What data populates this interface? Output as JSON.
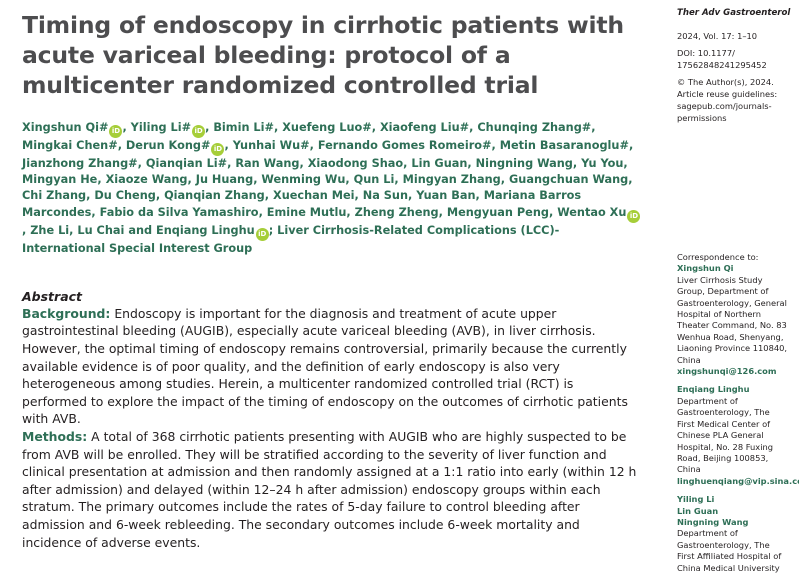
{
  "article": {
    "title": "Timing of endoscopy in cirrhotic patients with acute variceal bleeding: protocol of a multicenter randomized controlled trial",
    "authors": [
      {
        "name": "Xingshun Qi",
        "sup": "#",
        "orcid": true,
        "sep": ", "
      },
      {
        "name": "Yiling Li",
        "sup": "#",
        "orcid": true,
        "sep": ", "
      },
      {
        "name": "Bimin Li",
        "sup": "#",
        "orcid": false,
        "sep": ", "
      },
      {
        "name": "Xuefeng Luo",
        "sup": "#",
        "orcid": false,
        "sep": ", "
      },
      {
        "name": "Xiaofeng Liu",
        "sup": "#",
        "orcid": false,
        "sep": ", "
      },
      {
        "name": "Chunqing Zhang",
        "sup": "#",
        "orcid": false,
        "sep": ", "
      },
      {
        "name": "Mingkai Chen",
        "sup": "#",
        "orcid": false,
        "sep": ", "
      },
      {
        "name": "Derun Kong",
        "sup": "#",
        "orcid": true,
        "sep": ", "
      },
      {
        "name": "Yunhai Wu",
        "sup": "#",
        "orcid": false,
        "sep": ", "
      },
      {
        "name": "Fernando Gomes Romeiro",
        "sup": "#",
        "orcid": false,
        "sep": ", "
      },
      {
        "name": "Metin Basaranoglu",
        "sup": "#",
        "orcid": false,
        "sep": ", "
      },
      {
        "name": "Jianzhong Zhang",
        "sup": "#",
        "orcid": false,
        "sep": ", "
      },
      {
        "name": "Qianqian Li",
        "sup": "#",
        "orcid": false,
        "sep": ", "
      },
      {
        "name": "Ran Wang",
        "sup": "",
        "orcid": false,
        "sep": ", "
      },
      {
        "name": "Xiaodong Shao",
        "sup": "",
        "orcid": false,
        "sep": ", "
      },
      {
        "name": "Lin Guan",
        "sup": "",
        "orcid": false,
        "sep": ", "
      },
      {
        "name": "Ningning Wang",
        "sup": "",
        "orcid": false,
        "sep": ", "
      },
      {
        "name": "Yu You",
        "sup": "",
        "orcid": false,
        "sep": ", "
      },
      {
        "name": "Mingyan He",
        "sup": "",
        "orcid": false,
        "sep": ", "
      },
      {
        "name": "Xiaoze Wang",
        "sup": "",
        "orcid": false,
        "sep": ", "
      },
      {
        "name": "Ju Huang",
        "sup": "",
        "orcid": false,
        "sep": ", "
      },
      {
        "name": "Wenming Wu",
        "sup": "",
        "orcid": false,
        "sep": ", "
      },
      {
        "name": "Qun Li",
        "sup": "",
        "orcid": false,
        "sep": ", "
      },
      {
        "name": "Mingyan Zhang",
        "sup": "",
        "orcid": false,
        "sep": ", "
      },
      {
        "name": "Guangchuan Wang",
        "sup": "",
        "orcid": false,
        "sep": ", "
      },
      {
        "name": "Chi Zhang",
        "sup": "",
        "orcid": false,
        "sep": ", "
      },
      {
        "name": "Du Cheng",
        "sup": "",
        "orcid": false,
        "sep": ", "
      },
      {
        "name": "Qianqian Zhang",
        "sup": "",
        "orcid": false,
        "sep": ", "
      },
      {
        "name": "Xuechan Mei",
        "sup": "",
        "orcid": false,
        "sep": ", "
      },
      {
        "name": "Na Sun",
        "sup": "",
        "orcid": false,
        "sep": ", "
      },
      {
        "name": "Yuan Ban",
        "sup": "",
        "orcid": false,
        "sep": ", "
      },
      {
        "name": "Mariana Barros Marcondes",
        "sup": "",
        "orcid": false,
        "sep": ", "
      },
      {
        "name": "Fabio da Silva Yamashiro",
        "sup": "",
        "orcid": false,
        "sep": ", "
      },
      {
        "name": "Emine Mutlu",
        "sup": "",
        "orcid": false,
        "sep": ", "
      },
      {
        "name": "Zheng Zheng",
        "sup": "",
        "orcid": false,
        "sep": ", "
      },
      {
        "name": "Mengyuan Peng",
        "sup": "",
        "orcid": false,
        "sep": ", "
      },
      {
        "name": "Wentao Xu",
        "sup": "",
        "orcid": true,
        "sep": ", "
      },
      {
        "name": "Zhe Li",
        "sup": "",
        "orcid": false,
        "sep": ", "
      },
      {
        "name": "Lu Chai",
        "sup": "",
        "orcid": false,
        "sep": " and "
      },
      {
        "name": "Enqiang Linghu",
        "sup": "",
        "orcid": true,
        "sep": "; "
      },
      {
        "name": "Liver Cirrhosis-Related Complications (LCC)-International Special Interest Group",
        "sup": "",
        "orcid": false,
        "sep": ""
      }
    ],
    "orcid_glyph": "iD"
  },
  "abstract": {
    "heading": "Abstract",
    "background_label": "Background:",
    "background_text": "Endoscopy is important for the diagnosis and treatment of acute upper gastrointestinal bleeding (AUGIB), especially acute variceal bleeding (AVB), in liver cirrhosis. However, the optimal timing of endoscopy remains controversial, primarily because the currently available evidence is of poor quality, and the definition of early endoscopy is also very heterogeneous among studies. Herein, a multicenter randomized controlled trial (RCT) is performed to explore the impact of the timing of endoscopy on the outcomes of cirrhotic patients with AVB.",
    "methods_label": "Methods:",
    "methods_text": "A total of 368 cirrhotic patients presenting with AUGIB who are highly suspected to be from AVB will be enrolled. They will be stratified according to the severity of liver function and clinical presentation at admission and then randomly assigned at a 1:1 ratio into early (within 12 h after admission) and delayed (within 12–24 h after admission) endoscopy groups within each stratum. The primary outcomes include the rates of 5-day failure to control bleeding after admission and 6-week rebleeding. The secondary outcomes include 6-week mortality and incidence of adverse events."
  },
  "sidebar": {
    "journal": "Ther Adv Gastroenterol",
    "volume": "2024, Vol. 17: 1–10",
    "doi_label": "DOI: 10.1177/",
    "doi_rest": "17562848241295452",
    "copyright": "© The Author(s), 2024.",
    "reuse_line1": "Article reuse guidelines:",
    "reuse_line2": "sagepub.com/journals-",
    "reuse_line3": "permissions",
    "correspondence_label": "Correspondence to:",
    "contacts": [
      {
        "names": [
          "Xingshun Qi"
        ],
        "lines": [
          "Liver Cirrhosis Study",
          "Group, Department of",
          "Gastroenterology, General",
          "Hospital of Northern",
          "Theater Command, No. 83",
          "Wenhua Road, Shenyang,",
          "Liaoning Province 110840,",
          "China"
        ],
        "email": "xingshunqi@126.com"
      },
      {
        "names": [
          "Enqiang Linghu"
        ],
        "lines": [
          "Department of",
          "Gastroenterology, The",
          "First Medical Center of",
          "Chinese PLA General",
          "Hospital, No. 28 Fuxing",
          "Road, Beijing 100853,",
          "China"
        ],
        "email": "linghuenqiang@vip.sina.com"
      },
      {
        "names": [
          "Yiling Li",
          "Lin Guan",
          "Ningning Wang"
        ],
        "lines": [
          "Department of",
          "Gastroenterology, The",
          "First Affiliated Hospital of",
          "China Medical University"
        ],
        "email": ""
      }
    ]
  }
}
